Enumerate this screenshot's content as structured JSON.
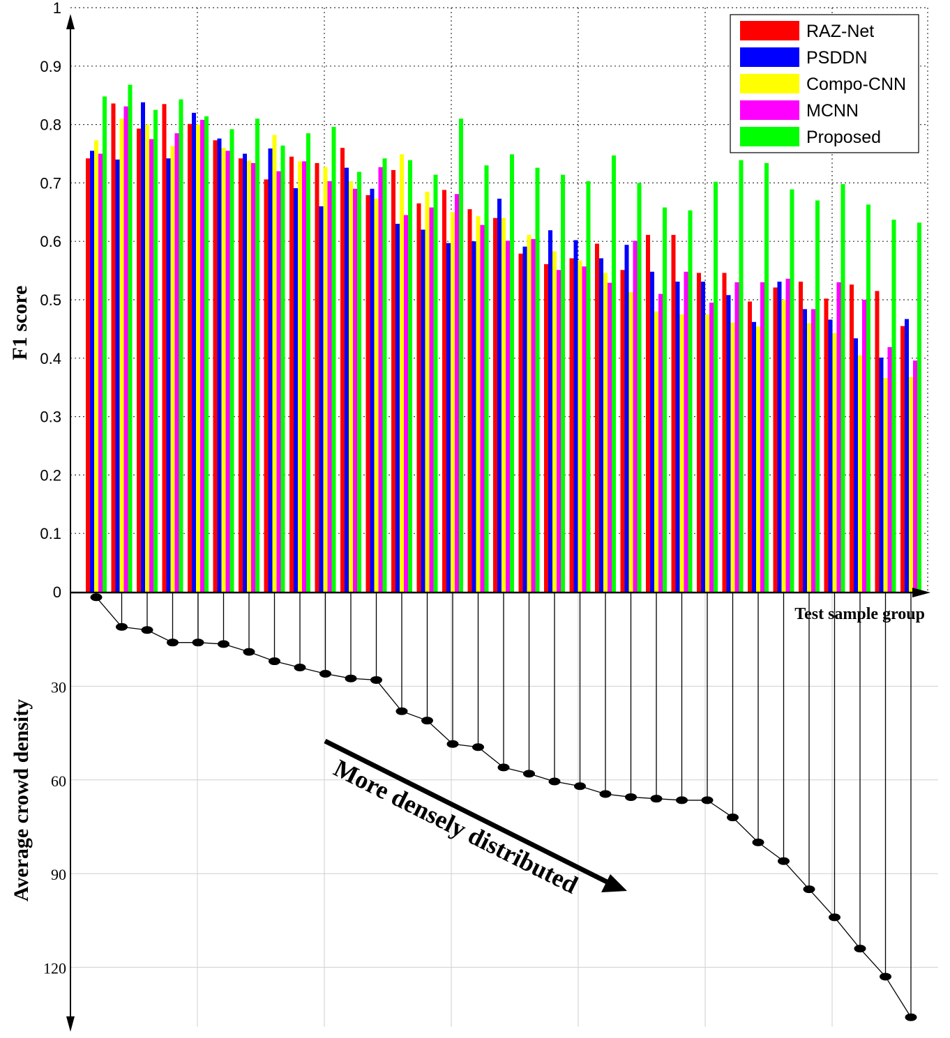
{
  "chart_data": [
    {
      "type": "bar",
      "ylabel": "F1 score",
      "xlabel": "Test sample group",
      "ylim": [
        0,
        1
      ],
      "yticks": [
        "0",
        "0.1",
        "0.2",
        "0.3",
        "0.4",
        "0.5",
        "0.6",
        "0.7",
        "0.8",
        "0.9",
        "1"
      ],
      "grid": true,
      "legend_position": "top-right",
      "series": [
        {
          "name": "RAZ-Net",
          "color": "#ff0000",
          "values": [
            0.742,
            0.836,
            0.793,
            0.835,
            0.801,
            0.773,
            0.742,
            0.706,
            0.745,
            0.734,
            0.76,
            0.679,
            0.722,
            0.665,
            0.688,
            0.655,
            0.64,
            0.579,
            0.561,
            0.571,
            0.596,
            0.551,
            0.611,
            0.611,
            0.546,
            0.546,
            0.497,
            0.521,
            0.531,
            0.502,
            0.526,
            0.515,
            0.455
          ]
        },
        {
          "name": "PSDDN",
          "color": "#0000ff",
          "values": [
            0.755,
            0.74,
            0.838,
            0.742,
            0.82,
            0.776,
            0.75,
            0.759,
            0.691,
            0.66,
            0.726,
            0.69,
            0.63,
            0.62,
            0.597,
            0.6,
            0.673,
            0.591,
            0.619,
            0.602,
            0.571,
            0.594,
            0.548,
            0.531,
            0.531,
            0.508,
            0.462,
            0.531,
            0.484,
            0.466,
            0.434,
            0.401,
            0.467
          ]
        },
        {
          "name": "Compo-CNN",
          "color": "#ffff00",
          "values": [
            0.773,
            0.81,
            0.8,
            0.763,
            0.8,
            0.76,
            0.738,
            0.782,
            0.737,
            0.727,
            0.703,
            0.673,
            0.749,
            0.685,
            0.65,
            0.643,
            0.64,
            0.611,
            0.583,
            0.567,
            0.546,
            0.513,
            0.48,
            0.475,
            0.475,
            0.461,
            0.454,
            0.5,
            0.46,
            0.443,
            0.405,
            0.366,
            0.368
          ]
        },
        {
          "name": "MCNN",
          "color": "#ff00ff",
          "values": [
            0.75,
            0.831,
            0.775,
            0.785,
            0.808,
            0.755,
            0.734,
            0.72,
            0.737,
            0.703,
            0.69,
            0.727,
            0.645,
            0.658,
            0.681,
            0.628,
            0.601,
            0.604,
            0.551,
            0.557,
            0.529,
            0.601,
            0.51,
            0.548,
            0.495,
            0.53,
            0.53,
            0.536,
            0.484,
            0.53,
            0.5,
            0.419,
            0.396
          ]
        },
        {
          "name": "Proposed",
          "color": "#00ff00",
          "values": [
            0.848,
            0.868,
            0.825,
            0.843,
            0.814,
            0.792,
            0.81,
            0.764,
            0.785,
            0.796,
            0.719,
            0.742,
            0.739,
            0.714,
            0.81,
            0.73,
            0.749,
            0.726,
            0.714,
            0.703,
            0.747,
            0.7,
            0.658,
            0.653,
            0.702,
            0.739,
            0.734,
            0.689,
            0.67,
            0.698,
            0.663,
            0.637,
            0.632
          ]
        }
      ]
    },
    {
      "type": "line",
      "ylabel": "Average crowd density",
      "yticks": [
        "30",
        "60",
        "90",
        "120"
      ],
      "ylim": [
        0,
        137
      ],
      "y_inverted": true,
      "grid": true,
      "values": [
        1.5,
        11,
        12,
        16,
        16,
        16.5,
        19,
        22,
        24,
        26,
        27.5,
        28,
        38,
        41,
        48.5,
        49.5,
        56,
        58,
        60.5,
        62,
        64.5,
        65.5,
        66,
        66.5,
        66.5,
        72,
        80,
        86,
        95,
        104,
        114,
        123,
        136
      ]
    }
  ],
  "annotation": {
    "text": "More densely distributed"
  }
}
